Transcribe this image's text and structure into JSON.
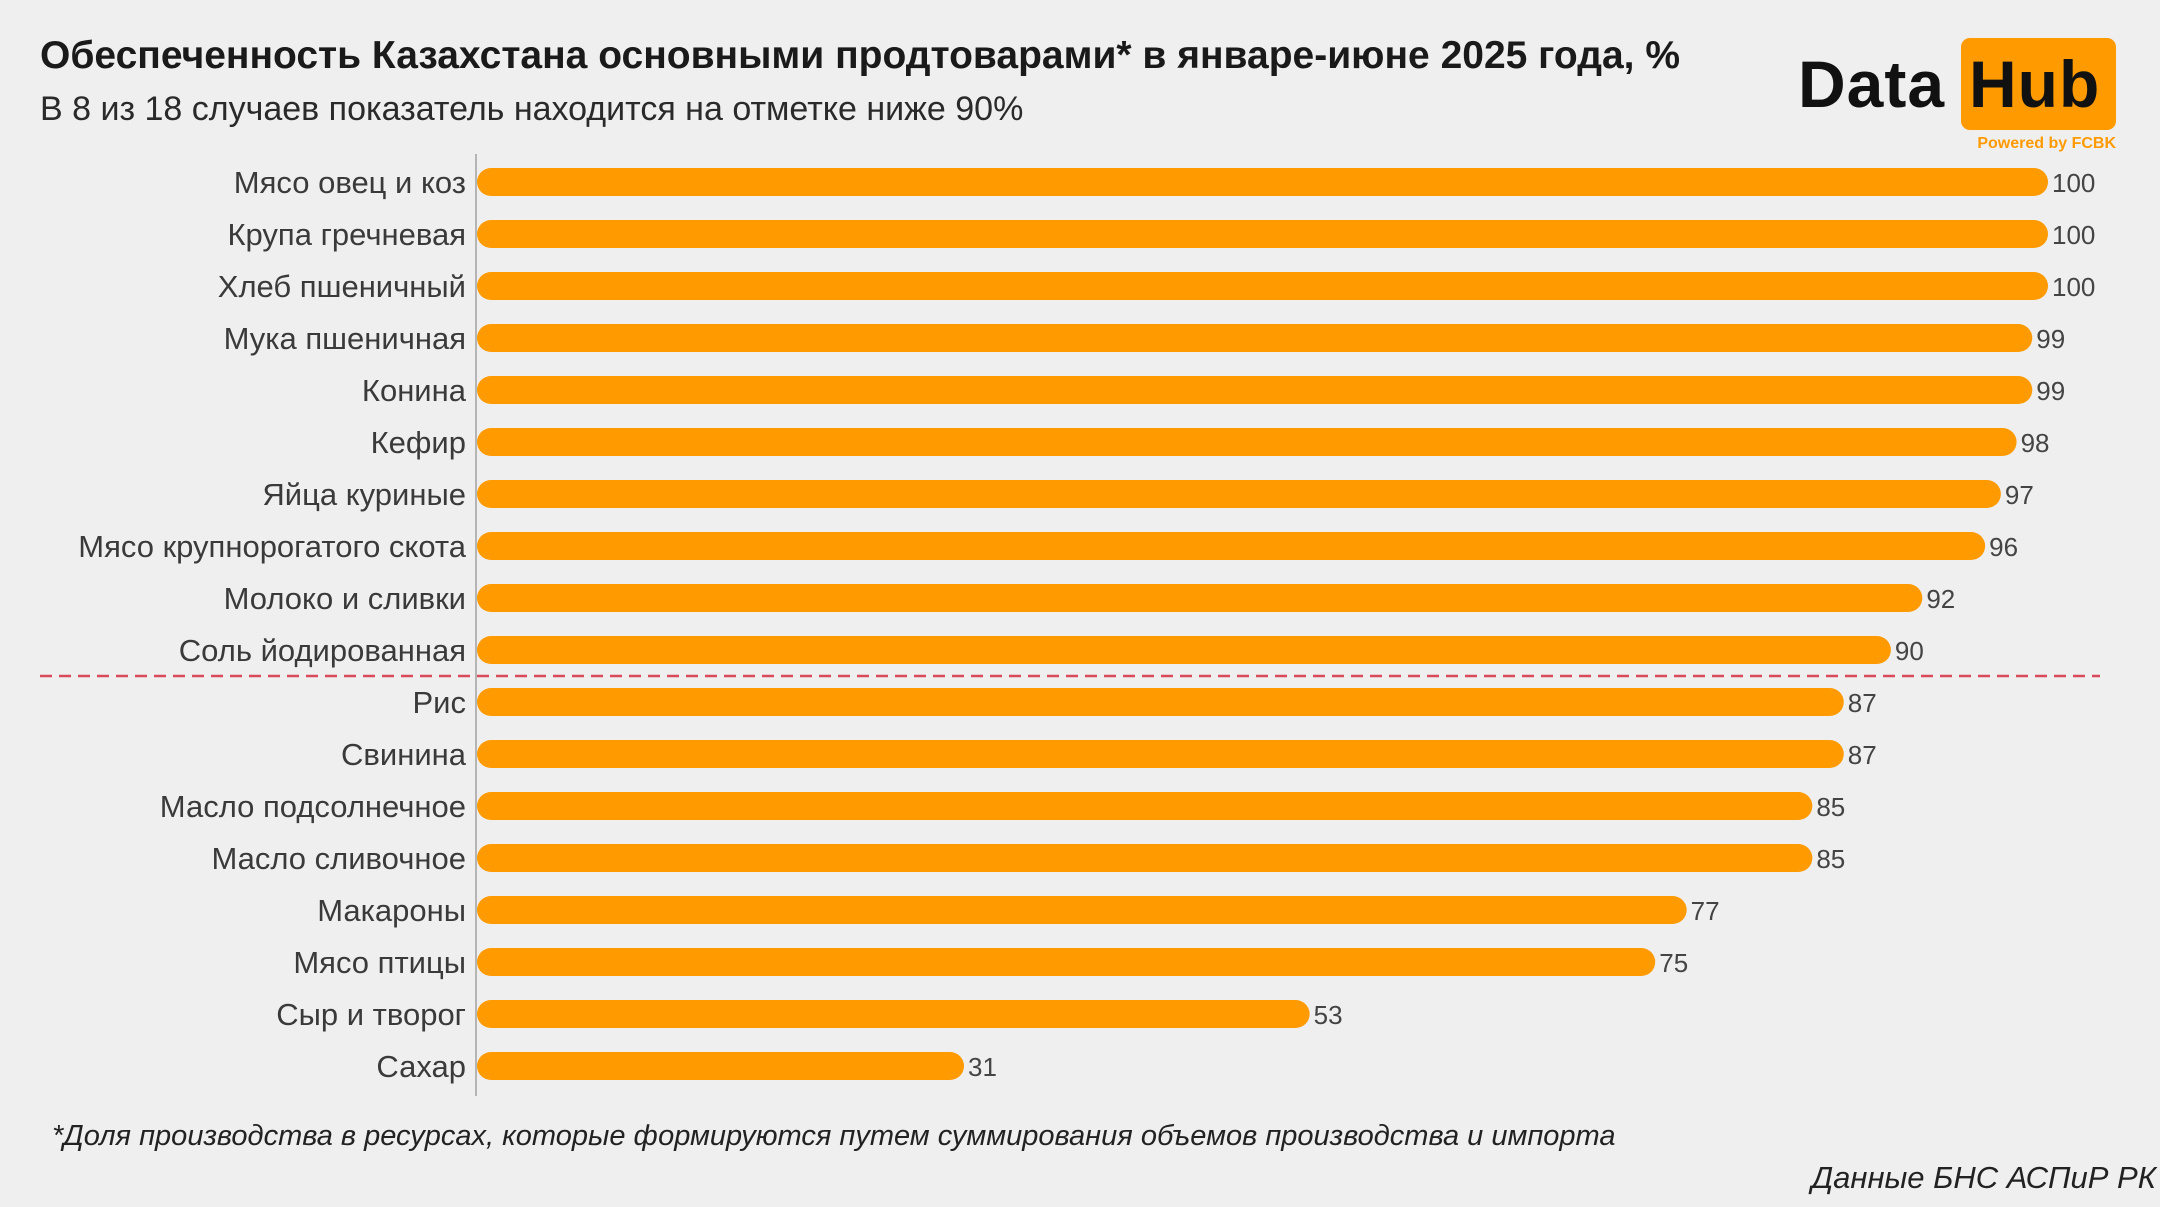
{
  "header": {
    "title": "Обеспеченность Казахстана основными продтоварами* в январе-июне 2025 года, %",
    "subtitle": "В 8 из 18 случаев показатель находится на отметке ниже 90%"
  },
  "logo": {
    "word1": "Data",
    "word2": "Hub",
    "tagline": "Powered by FCBK"
  },
  "colors": {
    "bar": "#ff9a00",
    "threshold_line": "#d94a5a",
    "axis": "#b5b5b5",
    "label": "#3a3a3a",
    "value": "#444444"
  },
  "chart_data": {
    "type": "bar",
    "orientation": "horizontal",
    "title": "Обеспеченность Казахстана основными продтоварами* в январе-июне 2025 года, %",
    "categories": [
      "Мясо овец и коз",
      "Крупа гречневая",
      "Хлеб пшеничный",
      "Мука пшеничная",
      "Конина",
      "Кефир",
      "Яйца куриные",
      "Мясо крупнорогатого скота",
      "Молоко и сливки",
      "Соль йодированная",
      "Рис",
      "Свинина",
      "Масло подсолнечное",
      "Масло сливочное",
      "Макароны",
      "Мясо птицы",
      "Сыр и творог",
      "Сахар"
    ],
    "values": [
      100,
      100,
      100,
      99,
      99,
      98,
      97,
      96,
      92,
      90,
      87,
      87,
      85,
      85,
      77,
      75,
      53,
      31
    ],
    "xlim": [
      0,
      100
    ],
    "threshold": 90,
    "threshold_style": "dashed",
    "grid": false,
    "xlabel": "",
    "ylabel": ""
  },
  "footer": {
    "footnote": "*Доля производства в ресурсах, которые формируются путем суммирования объемов производства и импорта",
    "source": "Данные БНС АСПиР РК"
  }
}
